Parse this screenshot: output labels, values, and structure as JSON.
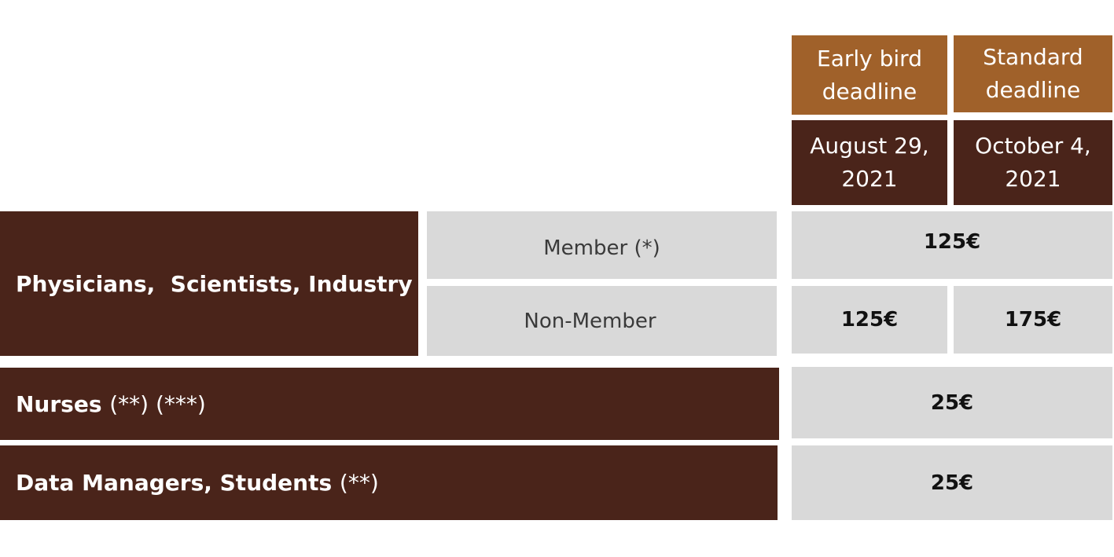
{
  "table": {
    "columns": [
      {
        "title": "Early bird deadline",
        "date": "August 29, 2021"
      },
      {
        "title": "Standard deadline",
        "date": "October 4, 2021"
      }
    ],
    "rows": [
      {
        "group": "Physicians,  Scientists, Industry",
        "subrows": [
          {
            "label": "Member (*)",
            "prices": [
              "125€"
            ]
          },
          {
            "label": "Non-Member",
            "prices": [
              "125€",
              "175€"
            ]
          }
        ]
      },
      {
        "group": "Nurses",
        "note": "(**) (***)",
        "prices": [
          "25€"
        ]
      },
      {
        "group": "Data Managers, Students",
        "note": "(**)",
        "prices": [
          "25€"
        ]
      }
    ]
  }
}
